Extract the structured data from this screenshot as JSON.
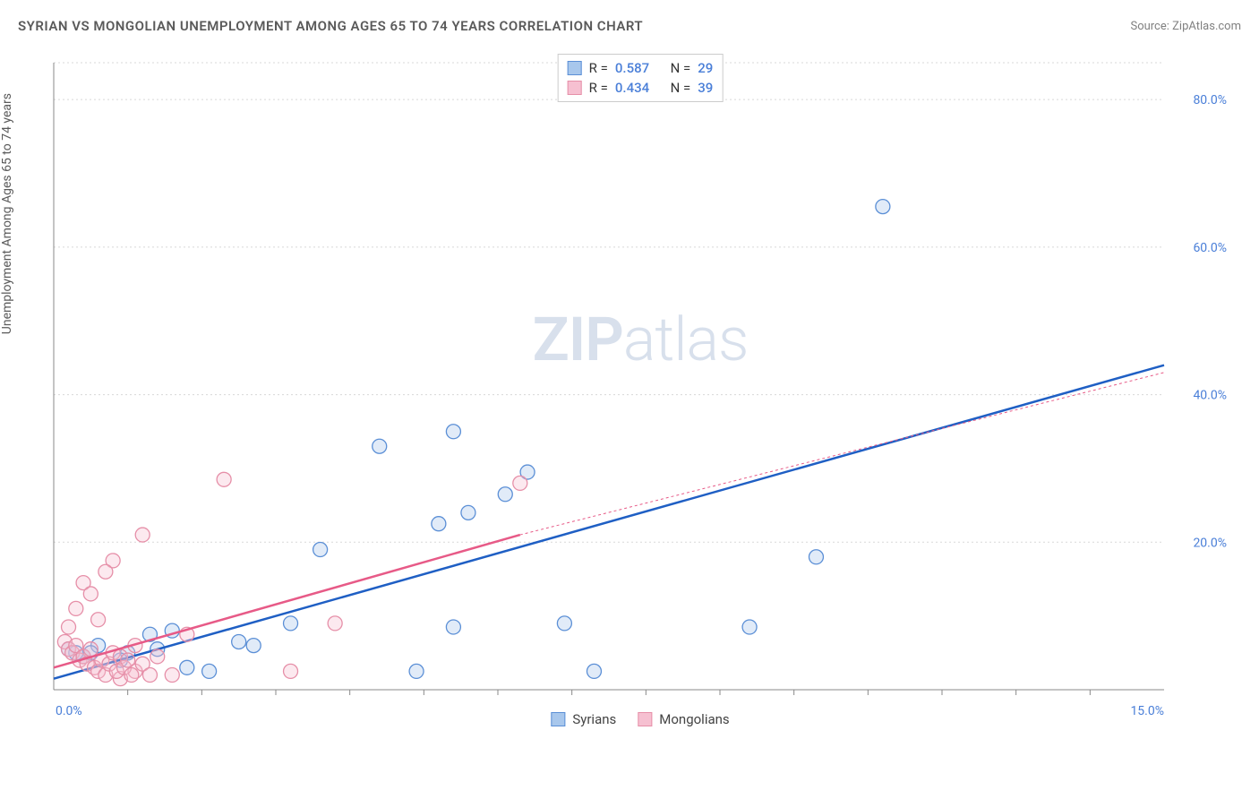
{
  "title": "SYRIAN VS MONGOLIAN UNEMPLOYMENT AMONG AGES 65 TO 74 YEARS CORRELATION CHART",
  "source": "Source: ZipAtlas.com",
  "y_axis_label": "Unemployment Among Ages 65 to 74 years",
  "watermark": {
    "bold": "ZIP",
    "light": "atlas"
  },
  "chart": {
    "type": "scatter",
    "background_color": "#ffffff",
    "grid_color": "#d8d8d8",
    "axis_color": "#888888",
    "label_color": "#4a7fd8",
    "xlim": [
      0,
      15
    ],
    "ylim": [
      0,
      85
    ],
    "x_ticks_major": [
      0,
      15
    ],
    "x_ticks_minor": [
      1,
      2,
      3,
      4,
      5,
      6,
      7,
      8,
      9,
      10,
      11,
      12,
      13,
      14
    ],
    "y_ticks": [
      20,
      40,
      60,
      80
    ],
    "x_tick_labels": [
      "0.0%",
      "15.0%"
    ],
    "y_tick_labels": [
      "20.0%",
      "40.0%",
      "60.0%",
      "80.0%"
    ],
    "marker_radius": 8,
    "marker_stroke_width": 1.3,
    "marker_fill_opacity": 0.35,
    "line_width_solid": 2.5,
    "line_width_dashed": 1,
    "dash_pattern": "3,3",
    "series": [
      {
        "name": "Syrians",
        "color_stroke": "#5b8fd6",
        "color_fill": "#a8c7ec",
        "trend_color": "#1f5fc4",
        "stats": {
          "R": "0.587",
          "N": "29"
        },
        "trend_solid": {
          "x1": 0,
          "y1": 1.5,
          "x2": 15,
          "y2": 44
        },
        "trend_dash_extension": null,
        "points": [
          [
            11.2,
            65.5
          ],
          [
            5.4,
            35.0
          ],
          [
            4.4,
            33.0
          ],
          [
            6.4,
            29.5
          ],
          [
            6.1,
            26.5
          ],
          [
            5.6,
            24.0
          ],
          [
            5.2,
            22.5
          ],
          [
            3.6,
            19.0
          ],
          [
            9.4,
            8.5
          ],
          [
            10.3,
            18.0
          ],
          [
            6.9,
            9.0
          ],
          [
            7.3,
            2.5
          ],
          [
            5.4,
            8.5
          ],
          [
            4.9,
            2.5
          ],
          [
            3.2,
            9.0
          ],
          [
            2.5,
            6.5
          ],
          [
            2.7,
            6.0
          ],
          [
            1.8,
            3.0
          ],
          [
            1.6,
            8.0
          ],
          [
            2.1,
            2.5
          ],
          [
            1.3,
            7.5
          ],
          [
            1.4,
            5.5
          ],
          [
            1.0,
            5.0
          ],
          [
            0.9,
            4.0
          ],
          [
            0.6,
            6.0
          ],
          [
            0.5,
            5.0
          ],
          [
            0.4,
            4.5
          ],
          [
            0.3,
            5.0
          ],
          [
            0.2,
            5.5
          ]
        ]
      },
      {
        "name": "Mongolians",
        "color_stroke": "#e68fa8",
        "color_fill": "#f6c0d1",
        "trend_color": "#e75a87",
        "stats": {
          "R": "0.434",
          "N": "39"
        },
        "trend_solid": {
          "x1": 0,
          "y1": 3.0,
          "x2": 6.3,
          "y2": 21.0
        },
        "trend_dash_extension": {
          "x1": 6.3,
          "y1": 21.0,
          "x2": 15,
          "y2": 43.0
        },
        "points": [
          [
            6.3,
            28.0
          ],
          [
            2.3,
            28.5
          ],
          [
            1.2,
            21.0
          ],
          [
            0.8,
            17.5
          ],
          [
            0.7,
            16.0
          ],
          [
            0.4,
            14.5
          ],
          [
            0.5,
            13.0
          ],
          [
            0.6,
            9.5
          ],
          [
            0.3,
            11.0
          ],
          [
            0.2,
            8.5
          ],
          [
            3.8,
            9.0
          ],
          [
            3.2,
            2.5
          ],
          [
            1.8,
            7.5
          ],
          [
            1.6,
            2.0
          ],
          [
            1.1,
            2.5
          ],
          [
            0.9,
            1.5
          ],
          [
            0.15,
            6.5
          ],
          [
            0.2,
            5.5
          ],
          [
            0.25,
            5.0
          ],
          [
            0.3,
            6.0
          ],
          [
            0.35,
            4.0
          ],
          [
            0.4,
            4.5
          ],
          [
            0.45,
            3.5
          ],
          [
            0.5,
            5.5
          ],
          [
            0.55,
            3.0
          ],
          [
            0.6,
            2.5
          ],
          [
            0.65,
            4.0
          ],
          [
            0.7,
            2.0
          ],
          [
            0.75,
            3.5
          ],
          [
            0.8,
            5.0
          ],
          [
            0.85,
            2.5
          ],
          [
            0.9,
            4.5
          ],
          [
            0.95,
            3.0
          ],
          [
            1.0,
            4.0
          ],
          [
            1.05,
            2.0
          ],
          [
            1.1,
            6.0
          ],
          [
            1.2,
            3.5
          ],
          [
            1.3,
            2.0
          ],
          [
            1.4,
            4.5
          ]
        ]
      }
    ]
  },
  "stats_box": {
    "rows": [
      {
        "swatch_fill": "#a8c7ec",
        "swatch_stroke": "#5b8fd6",
        "R_label": "R =",
        "R": "0.587",
        "N_label": "N =",
        "N": "29"
      },
      {
        "swatch_fill": "#f6c0d1",
        "swatch_stroke": "#e68fa8",
        "R_label": "R =",
        "R": "0.434",
        "N_label": "N =",
        "N": "39"
      }
    ]
  },
  "legend": [
    {
      "label": "Syrians",
      "swatch_fill": "#a8c7ec",
      "swatch_stroke": "#5b8fd6"
    },
    {
      "label": "Mongolians",
      "swatch_fill": "#f6c0d1",
      "swatch_stroke": "#e68fa8"
    }
  ]
}
